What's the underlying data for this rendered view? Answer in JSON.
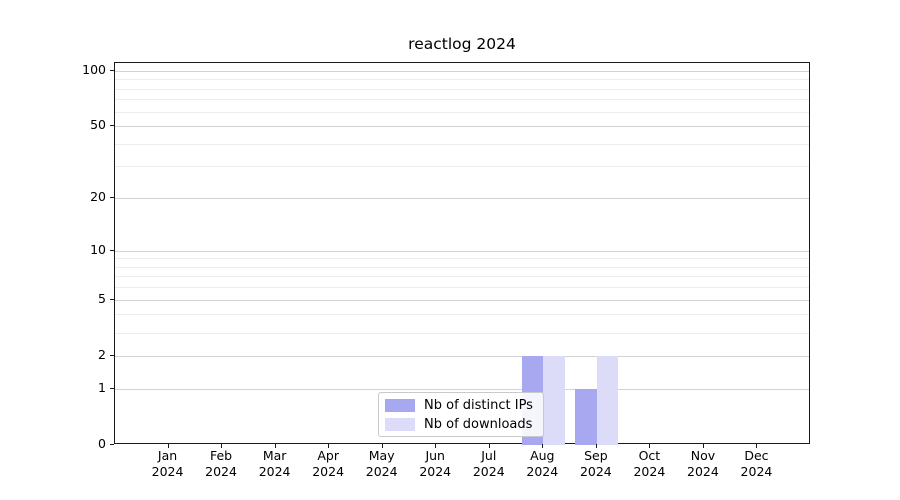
{
  "title": "reactlog 2024",
  "legend": {
    "items": [
      {
        "label": "Nb of distinct IPs",
        "color": "#a8a8f0"
      },
      {
        "label": "Nb of downloads",
        "color": "#dcdcf8"
      }
    ]
  },
  "axis": {
    "color": "#1a1a1a",
    "grid_major_color": "#d2d2d2",
    "grid_minor_color": "#ececec"
  },
  "chart_data": {
    "type": "bar",
    "title": "reactlog 2024",
    "x_months": [
      "Jan",
      "Feb",
      "Mar",
      "Apr",
      "May",
      "Jun",
      "Jul",
      "Aug",
      "Sep",
      "Oct",
      "Nov",
      "Dec"
    ],
    "x_year": "2024",
    "series": [
      {
        "name": "Nb of distinct IPs",
        "color": "#a8a8f0",
        "values": [
          0,
          0,
          0,
          0,
          0,
          0,
          0,
          2,
          1,
          0,
          0,
          0
        ]
      },
      {
        "name": "Nb of downloads",
        "color": "#dcdcf8",
        "values": [
          0,
          0,
          0,
          0,
          0,
          0,
          0,
          2,
          2,
          0,
          0,
          0
        ]
      }
    ],
    "yscale": "log1p",
    "ylim": [
      0,
      110
    ],
    "y_major_ticks": [
      0,
      1,
      2,
      5,
      10,
      20,
      50,
      100
    ],
    "y_minor_ticks": [
      3,
      4,
      6,
      7,
      8,
      9,
      30,
      40,
      60,
      70,
      80,
      90
    ],
    "grid": "horizontal",
    "legend_position": "inside-bottom-center"
  }
}
